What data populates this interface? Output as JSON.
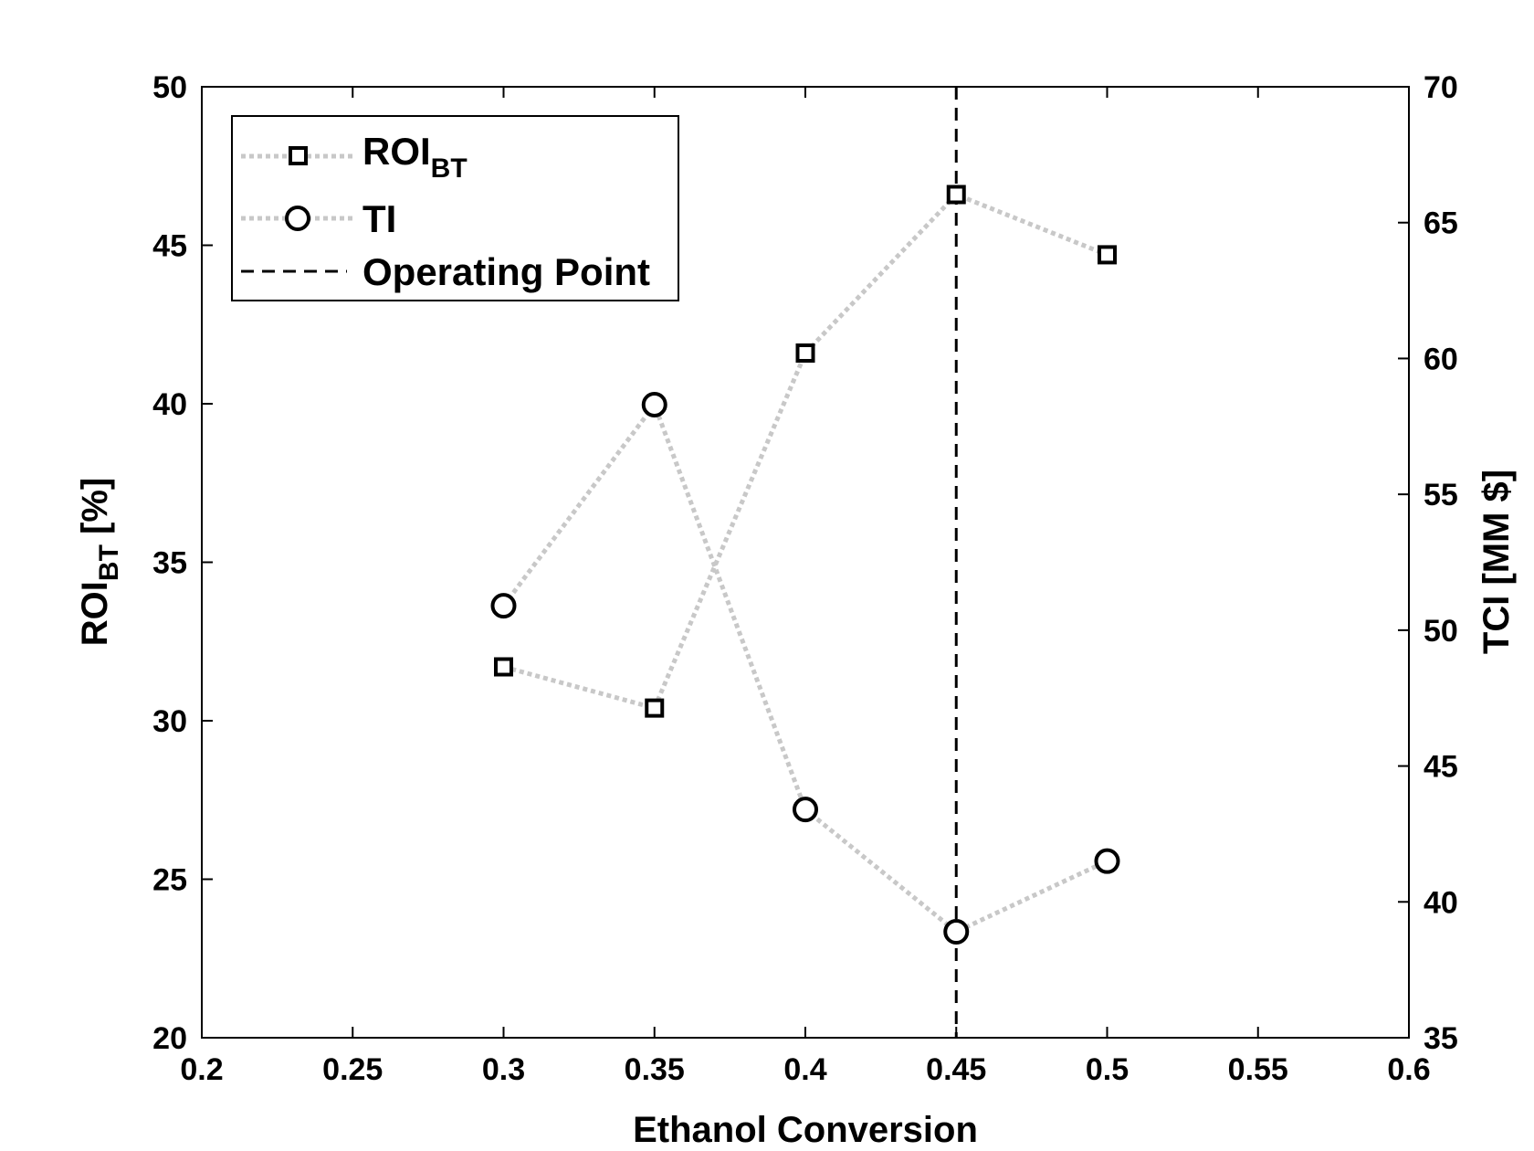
{
  "chart_data": {
    "type": "line",
    "x": [
      0.3,
      0.35,
      0.4,
      0.45,
      0.5
    ],
    "xlabel": "Ethanol Conversion",
    "xlim": [
      0.2,
      0.6
    ],
    "xticks": [
      "0.2",
      "0.25",
      "0.3",
      "0.35",
      "0.4",
      "0.45",
      "0.5",
      "0.55",
      "0.6"
    ],
    "ylabel_left": {
      "main": "ROI",
      "sub": "BT",
      "tail": " [%]"
    },
    "ylim_left": [
      20,
      50
    ],
    "yticks_left": [
      "20",
      "25",
      "30",
      "35",
      "40",
      "45",
      "50"
    ],
    "ylabel_right": "TCI [MM $]",
    "ylim_right": [
      35,
      70
    ],
    "yticks_right": [
      "35",
      "40",
      "45",
      "50",
      "55",
      "60",
      "65",
      "70"
    ],
    "series": [
      {
        "name": "ROI",
        "name_sub": "BT",
        "axis": "left",
        "marker": "square",
        "line_color": "#c8c8c8",
        "values": [
          31.7,
          30.4,
          41.6,
          46.6,
          44.7
        ]
      },
      {
        "name": "TI",
        "axis": "right",
        "marker": "circle",
        "line_color": "#c8c8c8",
        "values": [
          50.9,
          58.3,
          43.4,
          38.9,
          41.5
        ]
      }
    ],
    "reference_line": {
      "name": "Operating Point",
      "x": 0.45,
      "style": "dashed",
      "color": "#000000"
    },
    "legend": {
      "placement": "top-left"
    },
    "grid": false
  }
}
